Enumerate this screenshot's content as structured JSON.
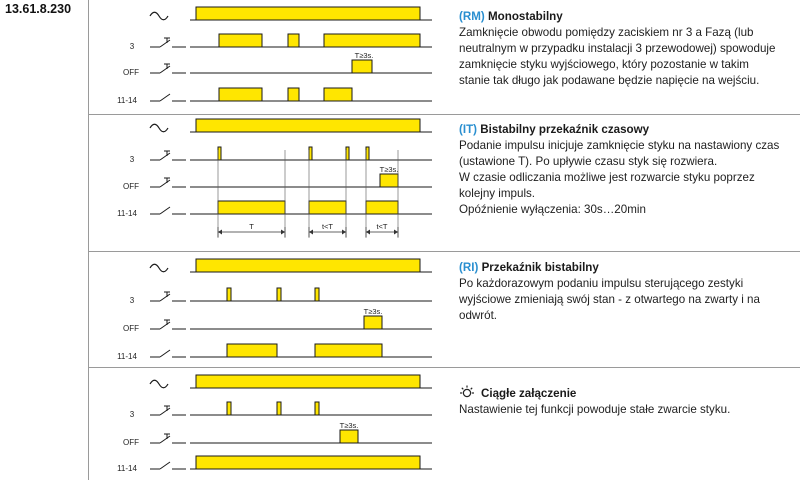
{
  "product_code": "13.61.8.230",
  "signals": {
    "supply": "~",
    "s3": "3",
    "off": "OFF",
    "out": "11-14"
  },
  "timing": {
    "T": "T",
    "tlt": "t<T",
    "tge": "T≥3s."
  },
  "colors": {
    "pulse": "#ffe600",
    "line": "#1a1a1a",
    "accent": "#2a8fd0"
  },
  "sections": [
    {
      "code": "(RM)",
      "title": "Monostabilny",
      "lines": [
        "Zamknięcie obwodu pomiędzy zaciskiem nr 3 a Fazą (lub",
        "neutralnym w przypadku instalacji 3 przewodowej) spowoduje",
        "zamknięcie styku wyjściowego, który pozostanie w takim",
        "stanie tak długo jak podawane będzie napięcie na wejściu."
      ]
    },
    {
      "code": "(IT)",
      "title": "Bistabilny przekaźnik czasowy",
      "lines": [
        "Podanie impulsu inicjuje zamknięcie styku na nastawiony czas",
        "(ustawione T). Po upływie czasu styk się rozwiera.",
        "W czasie odliczania możliwe jest rozwarcie styku poprzez",
        "kolejny impuls.",
        "Opóźnienie wyłączenia: 30s…20min"
      ]
    },
    {
      "code": "(RI)",
      "title": "Przekaźnik bistabilny",
      "lines": [
        "Po każdorazowym podaniu impulsu sterującego zestyki",
        "wyjściowe zmieniają swój stan - z otwartego na zwarty i na",
        "odwrót."
      ]
    },
    {
      "code": "",
      "icon": "sun-icon",
      "title": "Ciągłe załączenie",
      "lines": [
        "Nastawienie tej funkcji powoduje stałe zwarcie styku."
      ]
    }
  ]
}
